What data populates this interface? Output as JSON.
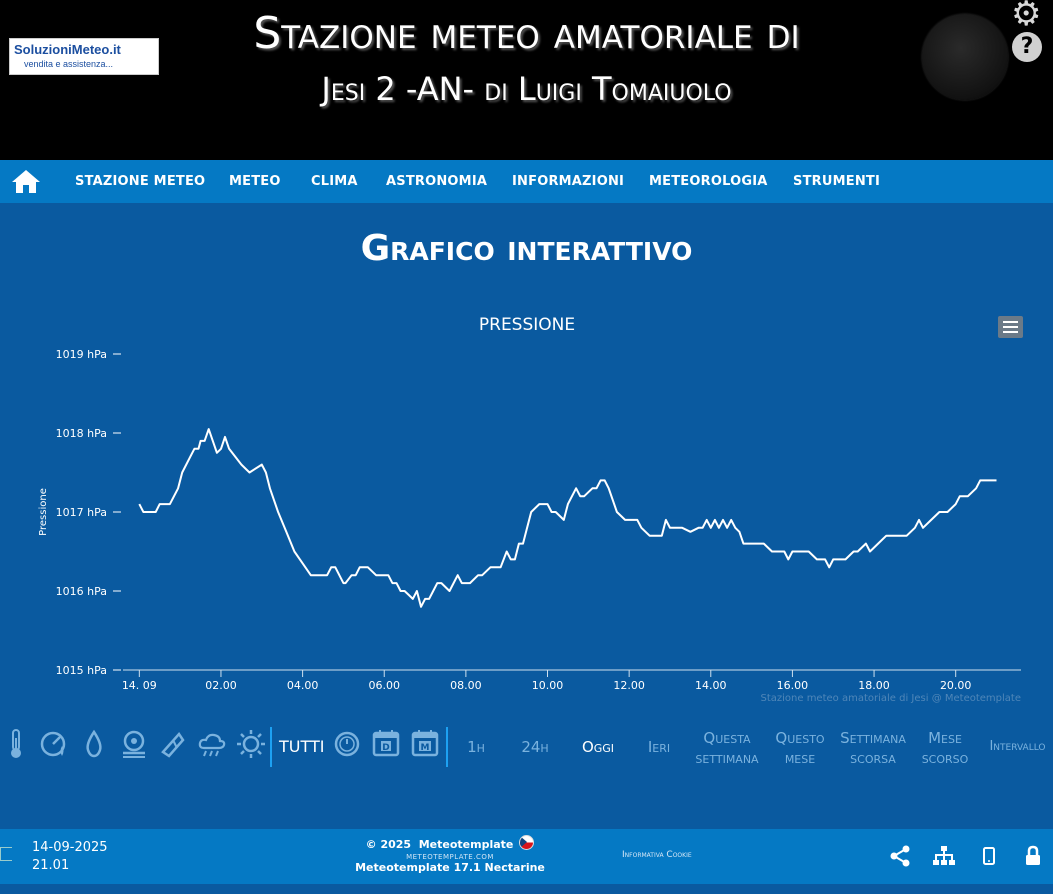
{
  "header": {
    "logo_title": "SoluzioniMeteo.it",
    "logo_subtitle": "vendita e assistenza...",
    "title_line1": "Stazione meteo amatoriale di",
    "title_line2": "Jesi 2 -AN- di Luigi Tomaiuolo"
  },
  "nav": {
    "items": [
      "STAZIONE METEO",
      "METEO",
      "CLIMA",
      "ASTRONOMIA",
      "INFORMAZIONI",
      "METEOROLOGIA",
      "STRUMENTI"
    ]
  },
  "page_title": "Grafico interattivo",
  "chart_data": {
    "type": "line",
    "title": "PRESSIONE",
    "ylabel": "Pressione",
    "xlabel": "",
    "credits": "Stazione meteo amatoriale di Jesi @ Meteotemplate",
    "ylim": [
      1015,
      1019
    ],
    "y_ticks": [
      1015,
      1016,
      1017,
      1018,
      1019
    ],
    "y_tick_labels": [
      "1015 hPa",
      "1016 hPa",
      "1017 hPa",
      "1018 hPa",
      "1019 hPa"
    ],
    "x_ticks": [
      0,
      2,
      4,
      6,
      8,
      10,
      12,
      14,
      16,
      18,
      20
    ],
    "x_tick_labels": [
      "14. 09",
      "02.00",
      "04.00",
      "06.00",
      "08.00",
      "10.00",
      "12.00",
      "14.00",
      "16.00",
      "18.00",
      "20.00"
    ],
    "xlim": [
      -0.4,
      21.6
    ],
    "line_color": "#ffffff",
    "series": [
      {
        "x": [
          0,
          0.1,
          0.4,
          0.5,
          0.7,
          0.75,
          0.95,
          1.05,
          1.25,
          1.35,
          1.45,
          1.5,
          1.6,
          1.7,
          1.8,
          1.9,
          2.0,
          2.1,
          2.2,
          2.5,
          2.6,
          2.7,
          3.0,
          3.1,
          3.2,
          3.4,
          3.6,
          3.8,
          4.0,
          4.2,
          4.4,
          4.6,
          4.7,
          4.8,
          5.0,
          5.05,
          5.2,
          5.3,
          5.4,
          5.6,
          5.8,
          5.9,
          6.1,
          6.2,
          6.3,
          6.4,
          6.5,
          6.6,
          6.7,
          6.8,
          6.9,
          7.0,
          7.1,
          7.2,
          7.3,
          7.4,
          7.6,
          7.8,
          7.9,
          8.0,
          8.1,
          8.3,
          8.4,
          8.6,
          8.8,
          8.85,
          9.0,
          9.1,
          9.2,
          9.3,
          9.4,
          9.5,
          9.6,
          9.8,
          10.0,
          10.1,
          10.2,
          10.4,
          10.5,
          10.6,
          10.7,
          10.8,
          10.9,
          11.1,
          11.2,
          11.3,
          11.4,
          11.5,
          11.7,
          11.9,
          12.2,
          12.3,
          12.5,
          12.6,
          12.7,
          12.8,
          12.9,
          13.0,
          13.1,
          13.2,
          13.3,
          13.5,
          13.7,
          13.8,
          13.9,
          14.0,
          14.1,
          14.2,
          14.3,
          14.4,
          14.5,
          14.6,
          14.7,
          14.8,
          15.0,
          15.3,
          15.5,
          15.6,
          15.8,
          15.9,
          16.0,
          16.2,
          16.4,
          16.6,
          16.8,
          16.9,
          17.0,
          17.3,
          17.5,
          17.6,
          17.8,
          17.9,
          18.1,
          18.3,
          18.6,
          18.8,
          19.0,
          19.1,
          19.2,
          19.4,
          19.6,
          19.8,
          20.0,
          20.1,
          20.3,
          20.5,
          20.6,
          20.8,
          21.0
        ],
        "values": [
          1017.1,
          1017.0,
          1017.0,
          1017.1,
          1017.1,
          1017.1,
          1017.3,
          1017.5,
          1017.7,
          1017.8,
          1017.8,
          1017.9,
          1017.9,
          1018.05,
          1017.9,
          1017.75,
          1017.8,
          1017.95,
          1017.8,
          1017.6,
          1017.55,
          1017.5,
          1017.6,
          1017.5,
          1017.3,
          1017.0,
          1016.75,
          1016.5,
          1016.35,
          1016.2,
          1016.2,
          1016.2,
          1016.3,
          1016.3,
          1016.1,
          1016.1,
          1016.2,
          1016.2,
          1016.3,
          1016.3,
          1016.2,
          1016.2,
          1016.2,
          1016.1,
          1016.1,
          1016.0,
          1016.0,
          1015.95,
          1015.9,
          1016.0,
          1015.8,
          1015.9,
          1015.9,
          1016.0,
          1016.1,
          1016.1,
          1016.0,
          1016.2,
          1016.1,
          1016.1,
          1016.1,
          1016.2,
          1016.2,
          1016.3,
          1016.3,
          1016.3,
          1016.5,
          1016.4,
          1016.4,
          1016.6,
          1016.6,
          1016.8,
          1017.0,
          1017.1,
          1017.1,
          1017.0,
          1017.0,
          1016.9,
          1017.1,
          1017.2,
          1017.3,
          1017.2,
          1017.2,
          1017.3,
          1017.3,
          1017.4,
          1017.4,
          1017.3,
          1017.0,
          1016.9,
          1016.9,
          1016.8,
          1016.7,
          1016.7,
          1016.7,
          1016.7,
          1016.9,
          1016.8,
          1016.8,
          1016.8,
          1016.8,
          1016.75,
          1016.8,
          1016.8,
          1016.9,
          1016.8,
          1016.9,
          1016.8,
          1016.9,
          1016.8,
          1016.9,
          1016.8,
          1016.75,
          1016.6,
          1016.6,
          1016.6,
          1016.5,
          1016.5,
          1016.5,
          1016.4,
          1016.5,
          1016.5,
          1016.5,
          1016.4,
          1016.4,
          1016.3,
          1016.4,
          1016.4,
          1016.5,
          1016.5,
          1016.6,
          1016.5,
          1016.6,
          1016.7,
          1016.7,
          1016.7,
          1016.8,
          1016.9,
          1016.8,
          1016.9,
          1017.0,
          1017.0,
          1017.1,
          1017.2,
          1017.2,
          1017.3,
          1017.4,
          1017.4,
          1017.4
        ]
      }
    ]
  },
  "toolbar": {
    "icons": [
      "thermometer-icon",
      "humidity-icon",
      "drop-icon",
      "pressure-icon",
      "wind-icon",
      "rain-icon",
      "sun-icon"
    ],
    "tutti": "TUTTI",
    "period_icons": [
      "clock-icon",
      "day-calendar-icon",
      "month-calendar-icon"
    ],
    "ranges": [
      {
        "line1": "1h",
        "line2": ""
      },
      {
        "line1": "24h",
        "line2": ""
      },
      {
        "line1": "Oggi",
        "line2": ""
      },
      {
        "line1": "Ieri",
        "line2": ""
      },
      {
        "line1": "Questa",
        "line2": "settimana"
      },
      {
        "line1": "Questo",
        "line2": "mese"
      },
      {
        "line1": "Settimana",
        "line2": "scorsa"
      },
      {
        "line1": "Mese",
        "line2": "scorso"
      },
      {
        "line1": "Intervallo",
        "line2": ""
      }
    ],
    "active_range": "Oggi"
  },
  "footer": {
    "date": "14-09-2025",
    "time": "21.01",
    "copyright": "© 2025",
    "brand": "Meteotemplate",
    "site": "METEOTEMPLATE.COM",
    "version": "Meteotemplate 17.1 Nectarine",
    "cookie": "Informativa Cookie"
  },
  "colors": {
    "background": "#0a5aa0",
    "navbar": "#0579c4",
    "header": "#000000",
    "accent": "#1da1f2",
    "inactive_text": "#7ab2de"
  }
}
